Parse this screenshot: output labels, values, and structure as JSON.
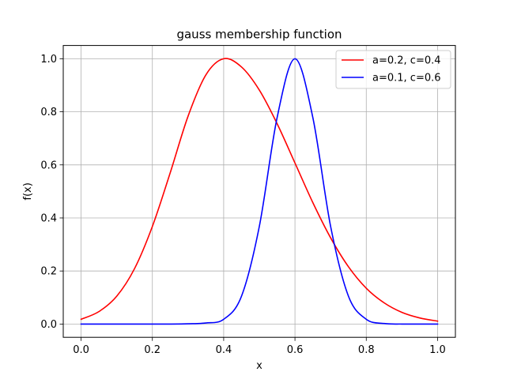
{
  "chart_data": {
    "type": "line",
    "title": "gauss membership function",
    "xlabel": "x",
    "ylabel": "f(x)",
    "xlim": [
      -0.05,
      1.05
    ],
    "ylim": [
      -0.05,
      1.05
    ],
    "xticks": [
      0.0,
      0.2,
      0.4,
      0.6,
      0.8,
      1.0
    ],
    "yticks": [
      0.0,
      0.2,
      0.4,
      0.6,
      0.8,
      1.0
    ],
    "xtick_labels": [
      "0.0",
      "0.2",
      "0.4",
      "0.6",
      "0.8",
      "1.0"
    ],
    "ytick_labels": [
      "0.0",
      "0.2",
      "0.4",
      "0.6",
      "0.8",
      "1.0"
    ],
    "grid": true,
    "legend_position": "top-right",
    "x": [
      0.0,
      0.05,
      0.1,
      0.15,
      0.2,
      0.25,
      0.3,
      0.35,
      0.4,
      0.45,
      0.5,
      0.55,
      0.6,
      0.65,
      0.7,
      0.75,
      0.8,
      0.85,
      0.9,
      0.95,
      1.0
    ],
    "series": [
      {
        "name": "a=0.2, c=0.4",
        "color": "#ff0000",
        "values": [
          0.018,
          0.047,
          0.105,
          0.209,
          0.368,
          0.57,
          0.783,
          0.939,
          1.0,
          0.969,
          0.882,
          0.755,
          0.607,
          0.458,
          0.325,
          0.216,
          0.135,
          0.08,
          0.044,
          0.023,
          0.011
        ]
      },
      {
        "name": "a=0.1, c=0.6",
        "color": "#0000ff",
        "values": [
          0.0,
          0.0,
          0.0,
          0.0,
          0.0,
          0.0,
          0.001,
          0.004,
          0.018,
          0.105,
          0.368,
          0.779,
          1.0,
          0.779,
          0.368,
          0.105,
          0.018,
          0.002,
          0.0,
          0.0,
          0.0
        ]
      }
    ]
  }
}
